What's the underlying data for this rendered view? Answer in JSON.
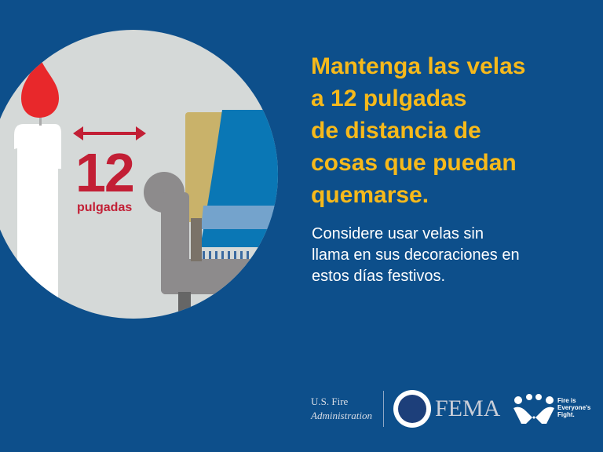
{
  "illustration": {
    "distance_number": "12",
    "distance_unit": "pulgadas",
    "colors": {
      "background": "#0d4f8b",
      "circle": "#d5d9d8",
      "flame": "#e8282b",
      "label": "#c21f35",
      "chair": "#8d8b8c",
      "curtain_tan": "#c9b26a",
      "curtain_blue": "#0a77b5",
      "stripe": "#74a3cc"
    }
  },
  "headline": {
    "lines": [
      "Mantenga las velas",
      "a 12 pulgadas",
      "de distancia de",
      "cosas que puedan",
      "quemarse."
    ],
    "color": "#f6b91b"
  },
  "subtext": {
    "lines": [
      "Considere usar velas sin",
      "llama en sus decoraciones en",
      "estos días festivos."
    ]
  },
  "footer": {
    "usfa_line1": "U.S. Fire",
    "usfa_line2": "Administration",
    "dhs_seal": "dhs-seal-icon",
    "fema": "FEMA",
    "campaign_line1": "Fire is",
    "campaign_line2": "Everyone's",
    "campaign_line3": "Fight."
  }
}
